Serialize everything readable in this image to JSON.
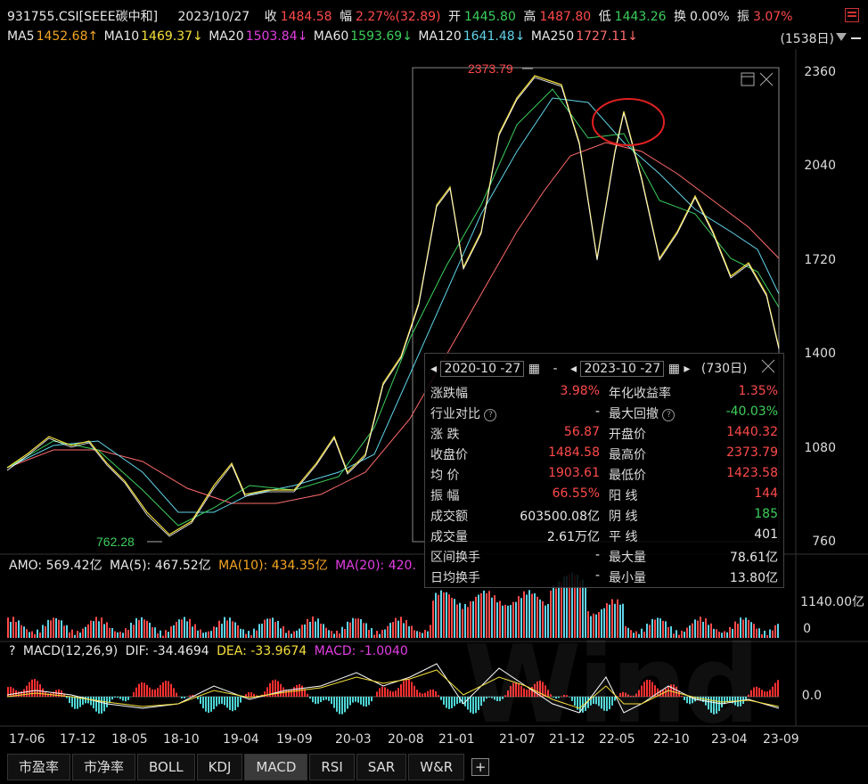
{
  "header": {
    "code": "931755.CSI[SEEE碳中和]",
    "date": "2023/10/27",
    "close_label": "收",
    "close": "1484.58",
    "change_label": "幅",
    "change": "2.27%(32.89)",
    "open_label": "开",
    "open": "1445.80",
    "high_label": "高",
    "high": "1487.80",
    "low_label": "低",
    "low": "1443.26",
    "turnover_label": "换",
    "turnover": "0.00%",
    "amplitude_label": "振",
    "amplitude": "3.07%"
  },
  "ma_bar": {
    "ma5": "MA5",
    "ma5_val": "1452.68↑",
    "ma10": "MA10",
    "ma10_val": "1469.37↓",
    "ma20": "MA20",
    "ma20_val": "1503.84↓",
    "ma60": "MA60",
    "ma60_val": "1593.69↓",
    "ma120": "MA120",
    "ma120_val": "1641.48↓",
    "ma250": "MA250",
    "ma250_val": "1727.11↓",
    "period": "(1538日)"
  },
  "price_axis": [
    "2360",
    "2040",
    "1720",
    "1400",
    "1080",
    "760"
  ],
  "annotations": {
    "high_mark": "2373.79",
    "low_mark": "762.28"
  },
  "amo_bar": {
    "amo": "AMO: 569.42亿",
    "ma5": "MA(5): 467.52亿",
    "ma10": "MA(10): 434.35亿",
    "ma20": "MA(20): 420."
  },
  "volume_axis": {
    "top": "1140.00亿",
    "bottom": "0"
  },
  "macd_bar": {
    "help": "?",
    "title": "MACD(12,26,9)",
    "dif": "DIF: -34.4694",
    "dea": "DEA: -33.9674",
    "macd": "MACD: -1.0040"
  },
  "macd_axis": {
    "zero": "0.0"
  },
  "dates": [
    "17-06",
    "17-12",
    "18-05",
    "18-10",
    "19-04",
    "19-09",
    "20-03",
    "20-08",
    "21-01",
    "21-07",
    "21-12",
    "22-05",
    "22-10",
    "23-04",
    "23-09"
  ],
  "tabs": [
    "市盈率",
    "市净率",
    "BOLL",
    "KDJ",
    "MACD",
    "RSI",
    "SAR",
    "W&R",
    "+"
  ],
  "popup": {
    "start_date": "2020-10 -27",
    "dash": "-",
    "end_date": "2023-10 -27",
    "days": "(730日)",
    "rows": [
      {
        "k": "涨跌幅",
        "v1": "3.98%",
        "k2": "年化收益率",
        "v2": "1.35%"
      },
      {
        "k": "行业对比",
        "v1": "-",
        "k2": "最大回撤",
        "v2": "-40.03%"
      },
      {
        "k": "涨  跌",
        "v1": "56.87",
        "k2": "开盘价",
        "v2": "1440.32"
      },
      {
        "k": "收盘价",
        "v1": "1484.58",
        "k2": "最高价",
        "v2": "2373.79"
      },
      {
        "k": "均  价",
        "v1": "1903.61",
        "k2": "最低价",
        "v2": "1423.58"
      },
      {
        "k": "振  幅",
        "v1": "66.55%",
        "k2": "阳  线",
        "v2": "144"
      },
      {
        "k": "成交额",
        "v1": "603500.08亿",
        "k2": "阴  线",
        "v2": "185"
      },
      {
        "k": "成交量",
        "v1": "2.61万亿",
        "k2": "平  线",
        "v2": "401"
      },
      {
        "k": "区间换手",
        "v1": "-",
        "k2": "最大量",
        "v2": "78.61亿"
      },
      {
        "k": "日均换手",
        "v1": "-",
        "k2": "最小量",
        "v2": "13.80亿"
      }
    ]
  },
  "watermark": "Wind",
  "colors": {
    "up": "#ff4a4a",
    "down": "#3ccf5b",
    "ma5": "#ffffff",
    "ma10": "#f5e03c",
    "ma20": "#e33ee3",
    "ma60": "#3ccf5b",
    "ma120": "#5fd3e8",
    "ma250": "#ff6b6b"
  }
}
